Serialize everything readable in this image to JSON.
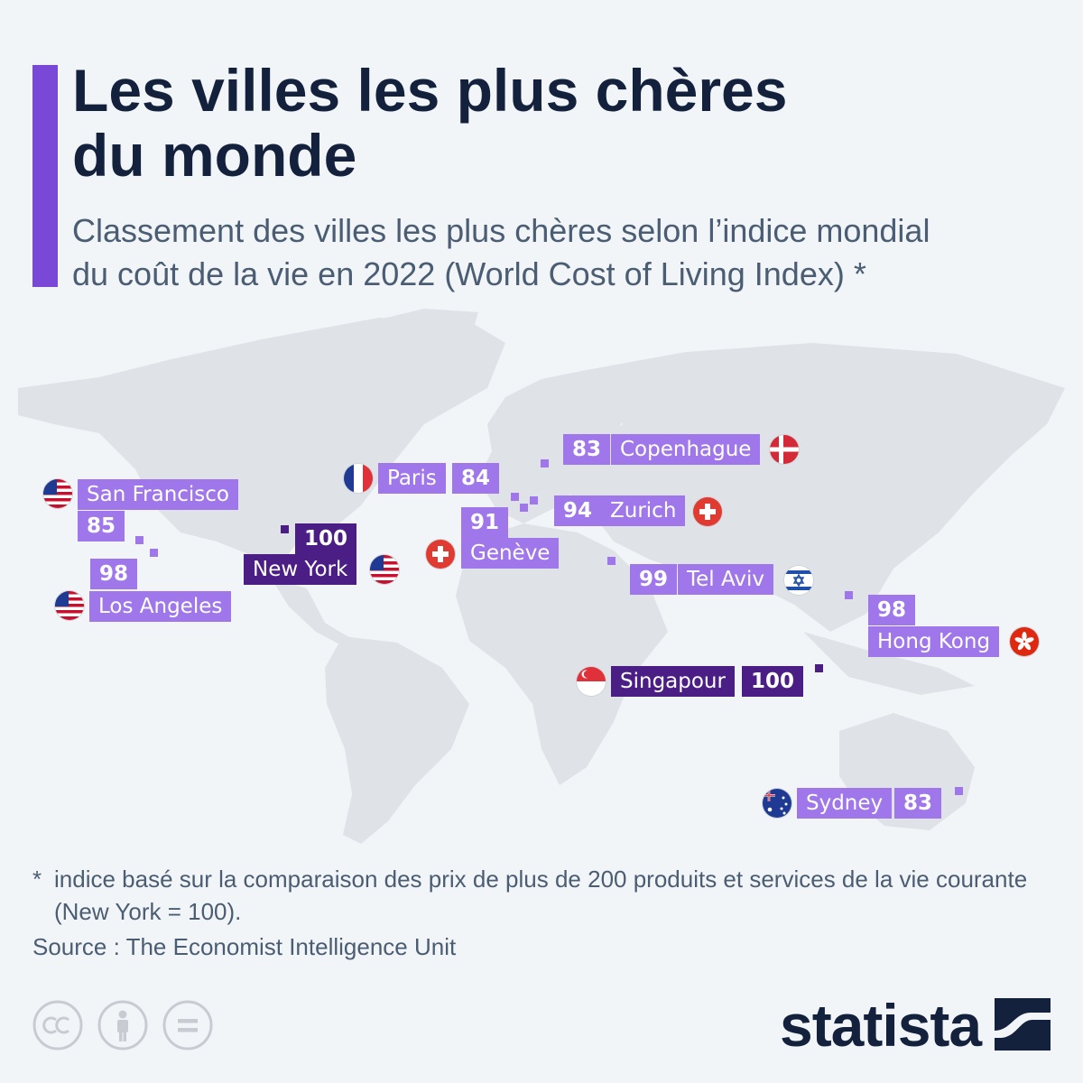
{
  "header": {
    "title_line1": "Les villes les plus chères",
    "title_line2": "du monde",
    "subtitle_line1": "Classement des villes les plus chères selon l’indice mondial",
    "subtitle_line2": "du coût de la vie en 2022 (World Cost of Living Index) *"
  },
  "colors": {
    "accent": "#7a48d6",
    "label_light": "#9f77ea",
    "label_dark": "#4b1e86",
    "map_land": "#dfe2e6",
    "text_dark": "#14213d"
  },
  "cities": {
    "san_francisco": {
      "name": "San Francisco",
      "value": "85",
      "flag": "us-flag-icon"
    },
    "los_angeles": {
      "name": "Los Angeles",
      "value": "98",
      "flag": "us-flag-icon"
    },
    "new_york": {
      "name": "New York",
      "value": "100",
      "flag": "us-flag-icon"
    },
    "paris": {
      "name": "Paris",
      "value": "84",
      "flag": "france-flag-icon"
    },
    "copenhague": {
      "name": "Copenhague",
      "value": "83",
      "flag": "denmark-flag-icon"
    },
    "zurich": {
      "name": "Zurich",
      "value": "94",
      "flag": "switzerland-flag-icon"
    },
    "geneve": {
      "name": "Genève",
      "value": "91",
      "flag": "switzerland-flag-icon"
    },
    "tel_aviv": {
      "name": "Tel Aviv",
      "value": "99",
      "flag": "israel-flag-icon"
    },
    "hong_kong": {
      "name": "Hong Kong",
      "value": "98",
      "flag": "hong-kong-flag-icon"
    },
    "singapour": {
      "name": "Singapour",
      "value": "100",
      "flag": "singapore-flag-icon"
    },
    "sydney": {
      "name": "Sydney",
      "value": "83",
      "flag": "australia-flag-icon"
    }
  },
  "footnote": {
    "star": "*",
    "text": "indice basé sur la comparaison des prix de plus de 200 produits et services de la vie courante (New York = 100)."
  },
  "source": "Source : The Economist Intelligence Unit",
  "footer": {
    "license_icons": [
      "cc-icon",
      "attribution-icon",
      "no-derivatives-icon"
    ],
    "brand": "statista",
    "brand_icon": "statista-logo-icon"
  }
}
